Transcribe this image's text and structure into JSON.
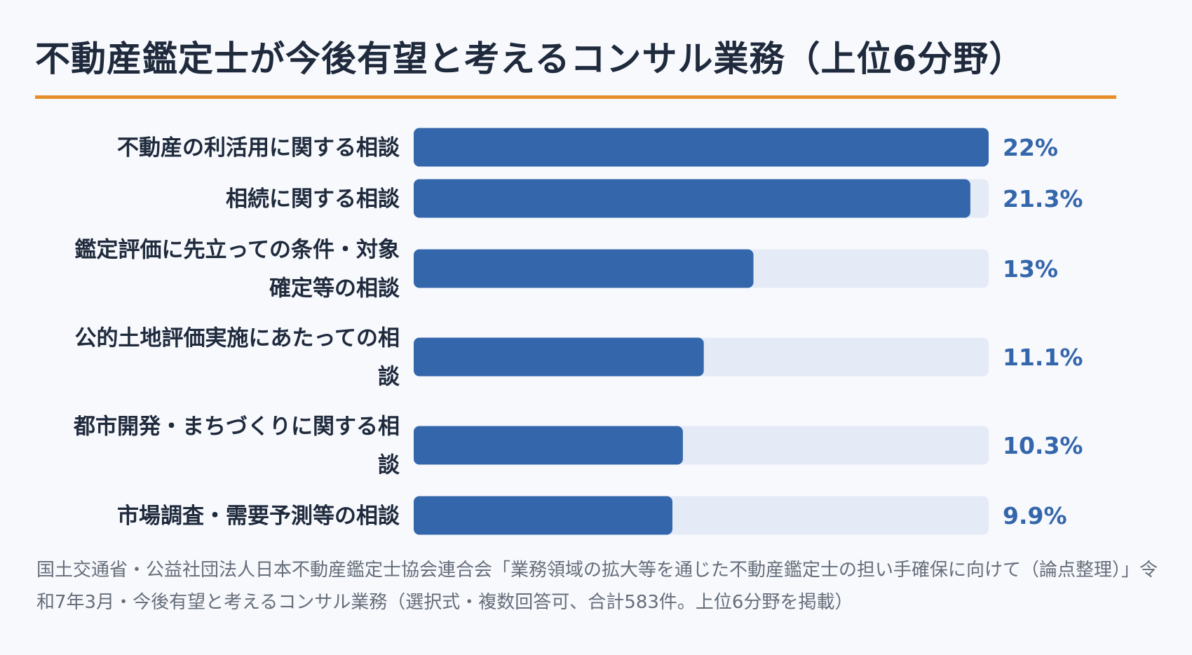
{
  "title": "不動産鑑定士が今後有望と考えるコンサル業務（上位6分野）",
  "colors": {
    "bar": "#3466ab",
    "track": "#e4ebf6",
    "value_text": "#3466ab",
    "accent_rule": "#e58f2a",
    "background": "#f7f9fd"
  },
  "chart_data": {
    "type": "bar",
    "orientation": "horizontal",
    "title": "不動産鑑定士が今後有望と考えるコンサル業務（上位6分野）",
    "unit": "%",
    "xlim": [
      0,
      22
    ],
    "categories": [
      [
        "不動産の利活用に関する相談"
      ],
      [
        "相続に関する相談"
      ],
      [
        "鑑定評価に先立っての条件・対象",
        "確定等の相談"
      ],
      [
        "公的土地評価実施にあたっての相",
        "談"
      ],
      [
        "都市開発・まちづくりに関する相",
        "談"
      ],
      [
        "市場調査・需要予測等の相談"
      ]
    ],
    "values": [
      22,
      21.3,
      13,
      11.1,
      10.3,
      9.9
    ],
    "value_labels": [
      "22%",
      "21.3%",
      "13%",
      "11.1%",
      "10.3%",
      "9.9%"
    ]
  },
  "source": "国土交通省・公益社団法人日本不動産鑑定士協会連合会「業務領域の拡大等を通じた不動産鑑定士の担い手確保に向けて（論点整理）」令和7年3月・今後有望と考えるコンサル業務（選択式・複数回答可、合計583件。上位6分野を掲載）"
}
